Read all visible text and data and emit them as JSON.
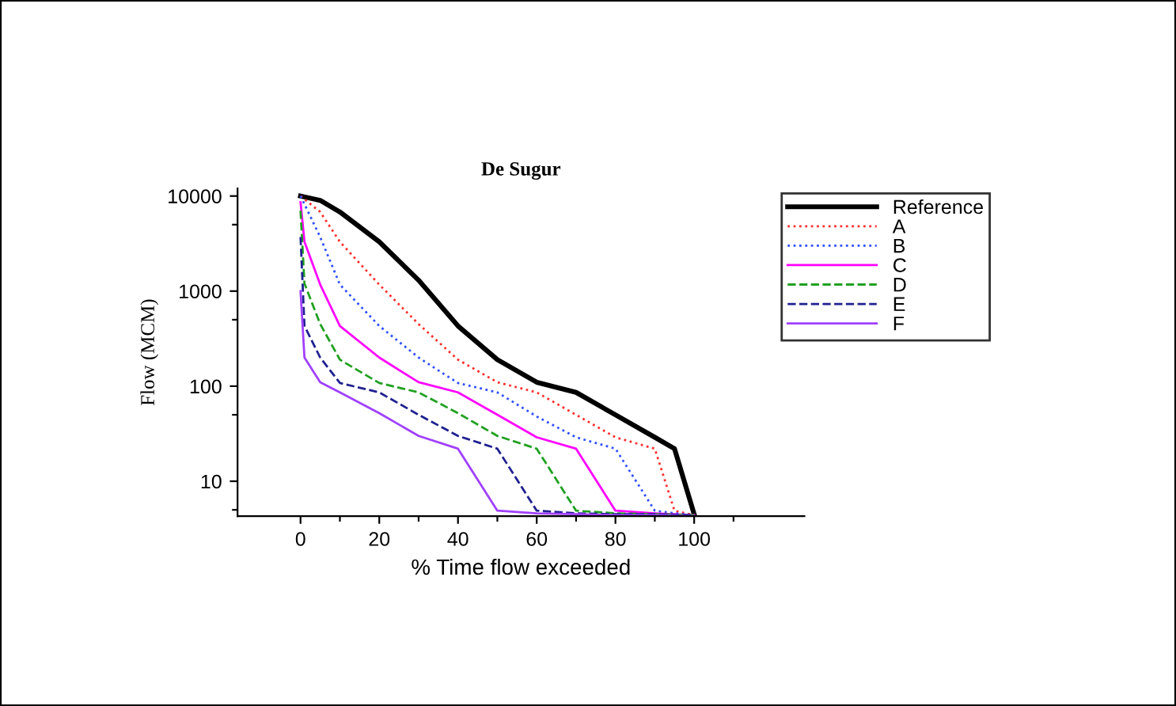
{
  "chart_data": {
    "type": "line",
    "title": "De Sugur",
    "xlabel": "% Time flow exceeded",
    "ylabel": "Flow (MCM)",
    "log": "y",
    "grid": false,
    "legend": "top right",
    "xlim": [
      -16,
      128
    ],
    "xticks": [
      0,
      20,
      40,
      60,
      80,
      100,
      {
        "value": 10,
        "label": null
      },
      {
        "value": 30,
        "label": null
      },
      {
        "value": 50,
        "label": null
      },
      {
        "value": 70,
        "label": null
      },
      {
        "value": 90,
        "label": null
      },
      {
        "value": 110,
        "label": null
      }
    ],
    "ylim": [
      4.3,
      12000
    ],
    "yticks": [
      10,
      100,
      1000,
      10000,
      {
        "value": 5,
        "label": null
      },
      {
        "value": 50,
        "label": null
      },
      {
        "value": 500,
        "label": null
      },
      {
        "value": 5000,
        "label": null
      }
    ],
    "series": [
      {
        "name": "Reference",
        "color": "#000000",
        "line_style": "solid",
        "x": [
          0,
          5,
          10,
          20,
          30,
          40,
          50,
          60,
          70,
          80,
          90,
          95,
          100
        ],
        "values": [
          10000,
          9000,
          6800,
          3300,
          1300,
          430,
          190,
          110,
          86,
          50,
          29,
          22,
          4.5
        ]
      },
      {
        "name": "A",
        "color": "#ff3030",
        "line_style": "dotted",
        "x": [
          0,
          5,
          10,
          20,
          30,
          40,
          50,
          60,
          70,
          80,
          90,
          95,
          100
        ],
        "values": [
          10000,
          6800,
          3300,
          1170,
          450,
          190,
          110,
          86,
          50,
          29,
          22,
          4.9,
          4.4
        ]
      },
      {
        "name": "B",
        "color": "#3050ff",
        "line_style": "dotted",
        "x": [
          0,
          5,
          10,
          20,
          30,
          40,
          50,
          60,
          70,
          80,
          90,
          95,
          100
        ],
        "values": [
          10000,
          3700,
          1170,
          430,
          200,
          108,
          86,
          48,
          29,
          22,
          4.9,
          4.6,
          4.4
        ]
      },
      {
        "name": "C",
        "color": "#ff00ff",
        "line_style": "solid",
        "x": [
          0,
          1,
          5,
          10,
          20,
          30,
          40,
          50,
          60,
          70,
          80,
          90,
          100
        ],
        "values": [
          8600,
          3300,
          1170,
          430,
          200,
          110,
          86,
          50,
          29,
          22,
          4.9,
          4.6,
          4.4
        ]
      },
      {
        "name": "D",
        "color": "#20a020",
        "line_style": "dashed",
        "x": [
          0,
          1,
          5,
          10,
          20,
          30,
          40,
          50,
          60,
          70,
          80,
          90,
          100
        ],
        "values": [
          7000,
          1200,
          450,
          190,
          108,
          86,
          52,
          30,
          22,
          4.9,
          4.6,
          4.5,
          4.4
        ]
      },
      {
        "name": "E",
        "color": "#202090",
        "line_style": "dashed",
        "x": [
          0,
          1,
          5,
          10,
          20,
          30,
          40,
          50,
          60,
          70,
          80,
          90,
          100
        ],
        "values": [
          3700,
          430,
          200,
          108,
          86,
          50,
          30,
          22,
          4.9,
          4.6,
          4.5,
          4.5,
          4.4
        ]
      },
      {
        "name": "F",
        "color": "#a040ff",
        "line_style": "solid",
        "x": [
          0,
          1,
          5,
          10,
          20,
          30,
          40,
          50,
          60,
          70,
          80,
          90,
          100
        ],
        "values": [
          1000,
          200,
          110,
          86,
          52,
          30,
          22,
          4.9,
          4.6,
          4.5,
          4.4,
          4.4,
          4.3
        ]
      }
    ]
  }
}
